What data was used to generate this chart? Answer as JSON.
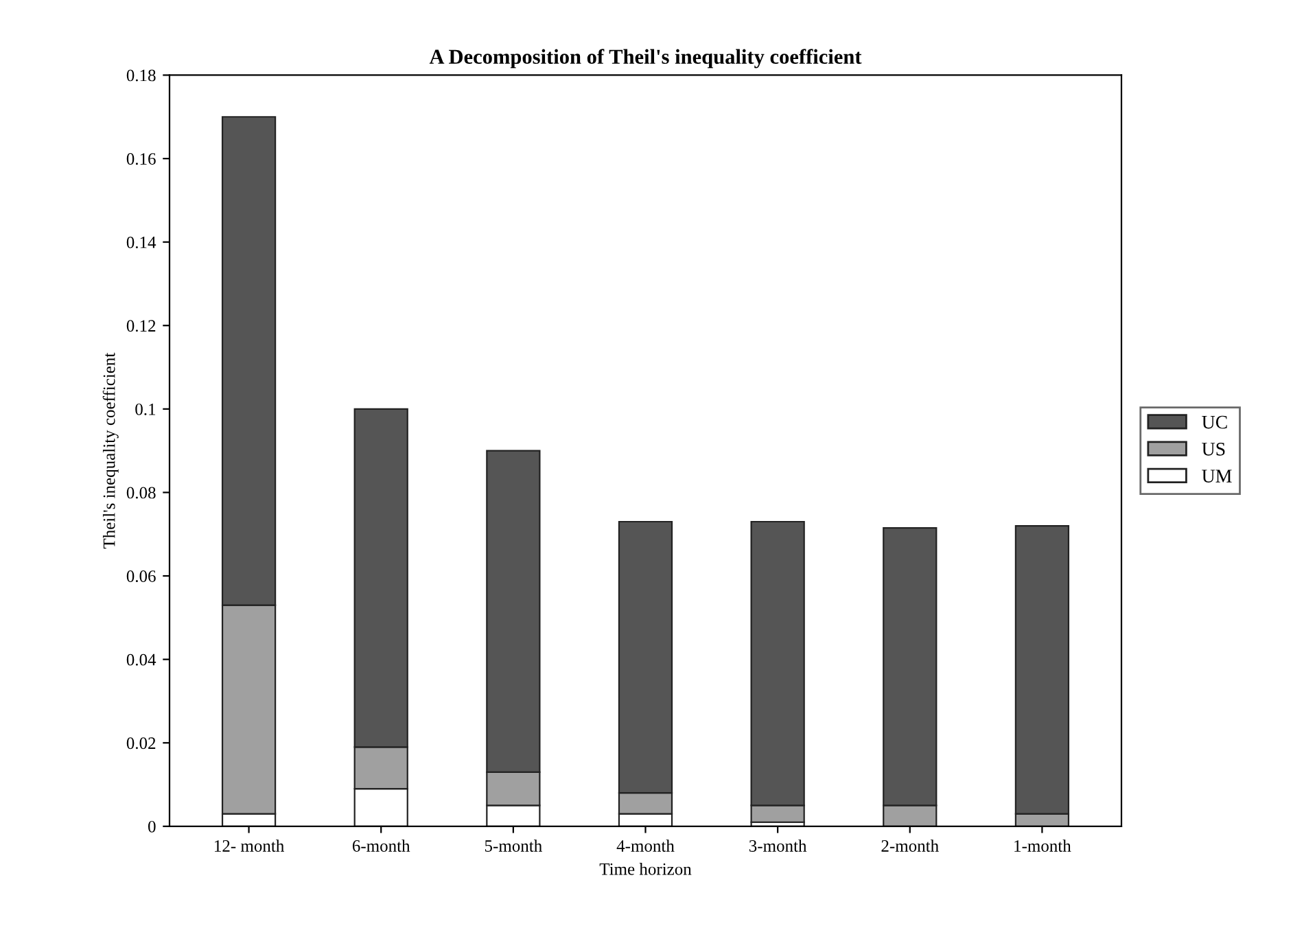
{
  "chart_data": {
    "type": "bar",
    "stacked": true,
    "title": "A Decomposition of Theil's inequality coefficient",
    "xlabel": "Time horizon",
    "ylabel": "Theil's inequality coefficient",
    "categories": [
      "12- month",
      "6-month",
      "5-month",
      "4-month",
      "3-month",
      "2-month",
      "1-month"
    ],
    "series": [
      {
        "name": "UM",
        "color": "#ffffff",
        "values": [
          0.003,
          0.009,
          0.005,
          0.003,
          0.001,
          null,
          null
        ]
      },
      {
        "name": "US",
        "color": "#a0a0a0",
        "values": [
          0.05,
          0.01,
          0.008,
          0.005,
          0.004,
          0.005,
          0.003
        ]
      },
      {
        "name": "UC",
        "color": "#555555",
        "values": [
          0.117,
          0.081,
          0.077,
          0.065,
          0.068,
          0.0665,
          0.069
        ]
      }
    ],
    "ylim": [
      0,
      0.18
    ],
    "yticks": [
      0,
      0.02,
      0.04,
      0.06,
      0.08,
      0.1,
      0.12,
      0.14,
      0.16,
      0.18
    ],
    "grid": false,
    "legend": "right"
  }
}
